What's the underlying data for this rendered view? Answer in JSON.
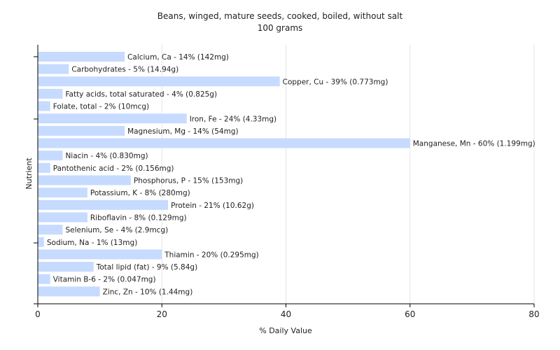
{
  "chart_data": {
    "type": "bar",
    "orientation": "horizontal",
    "title": "Beans, winged, mature seeds, cooked, boiled, without salt",
    "subtitle": "100 grams",
    "xlabel": "% Daily Value",
    "ylabel": "Nutrient",
    "xlim": [
      0,
      80
    ],
    "xticks": [
      "0",
      "20",
      "40",
      "60",
      "80"
    ],
    "grid": true,
    "bar_color": "#c6dbff",
    "categories": [
      "Calcium, Ca",
      "Carbohydrates",
      "Copper, Cu",
      "Fatty acids, total saturated",
      "Folate, total",
      "Iron, Fe",
      "Magnesium, Mg",
      "Manganese, Mn",
      "Niacin",
      "Pantothenic acid",
      "Phosphorus, P",
      "Potassium, K",
      "Protein",
      "Riboflavin",
      "Selenium, Se",
      "Sodium, Na",
      "Thiamin",
      "Total lipid (fat)",
      "Vitamin B-6",
      "Zinc, Zn"
    ],
    "values": [
      14,
      5,
      39,
      4,
      2,
      24,
      14,
      60,
      4,
      2,
      15,
      8,
      21,
      8,
      4,
      1,
      20,
      9,
      2,
      10
    ],
    "labels": [
      "Calcium, Ca - 14% (142mg)",
      "Carbohydrates - 5% (14.94g)",
      "Copper, Cu - 39% (0.773mg)",
      "Fatty acids, total saturated - 4% (0.825g)",
      "Folate, total - 2% (10mcg)",
      "Iron, Fe - 24% (4.33mg)",
      "Magnesium, Mg - 14% (54mg)",
      "Manganese, Mn - 60% (1.199mg)",
      "Niacin - 4% (0.830mg)",
      "Pantothenic acid - 2% (0.156mg)",
      "Phosphorus, P - 15% (153mg)",
      "Potassium, K - 8% (280mg)",
      "Protein - 21% (10.62g)",
      "Riboflavin - 8% (0.129mg)",
      "Selenium, Se - 4% (2.9mcg)",
      "Sodium, Na - 1% (13mg)",
      "Thiamin - 20% (0.295mg)",
      "Total lipid (fat) - 9% (5.84g)",
      "Vitamin B-6 - 2% (0.047mg)",
      "Zinc, Zn - 10% (1.44mg)"
    ]
  }
}
